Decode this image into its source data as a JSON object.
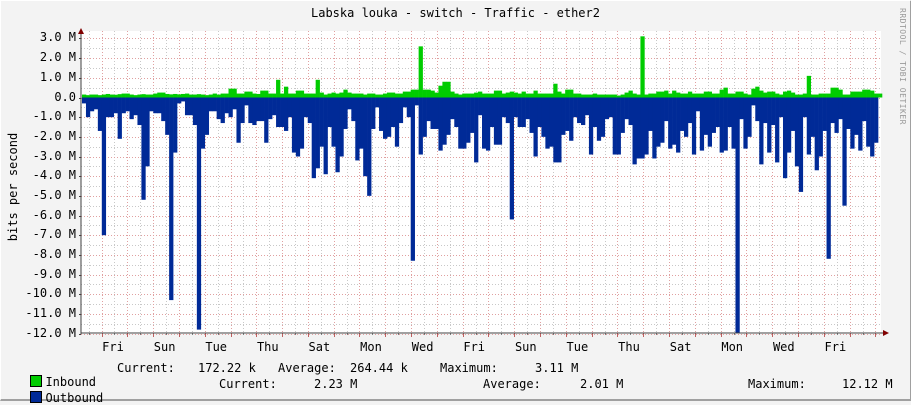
{
  "title": "Labska louka - switch - Traffic - ether2",
  "brand": "RRDTOOL / TOBI OETIKER",
  "y_axis_label": "bits per second",
  "colors": {
    "inbound": "#00cc00",
    "outbound": "#002a97",
    "grid_major": "#e0a0a0",
    "grid_minor": "#c8c8c8",
    "axis": "#404040",
    "arrow": "#800000",
    "background": "#f3f3f3",
    "canvas": "#ffffff"
  },
  "y_ticks": [
    "3.0 M",
    "2.0 M",
    "1.0 M",
    "0.0",
    "-1.0 M",
    "-2.0 M",
    "-3.0 M",
    "-4.0 M",
    "-5.0 M",
    "-6.0 M",
    "-7.0 M",
    "-8.0 M",
    "-9.0 M",
    "-10.0 M",
    "-11.0 M",
    "-12.0 M"
  ],
  "x_ticks": [
    "Fri",
    "Sun",
    "Tue",
    "Thu",
    "Sat",
    "Mon",
    "Wed",
    "Fri",
    "Sun",
    "Tue",
    "Thu",
    "Sat",
    "Mon",
    "Wed",
    "Fri"
  ],
  "legend": {
    "inbound": {
      "label": "Inbound",
      "current_label": "Current:",
      "current": "172.22 k",
      "average_label": "Average:",
      "average": "264.44 k",
      "maximum_label": "Maximum:",
      "maximum": "3.11 M"
    },
    "outbound": {
      "label": "Outbound",
      "current_label": "Current:",
      "current": "2.23 M",
      "average_label": "Average:",
      "average": "2.01 M",
      "maximum_label": "Maximum:",
      "maximum": "12.12 M"
    }
  },
  "chart_data": {
    "type": "area",
    "title": "Labska louka - switch - Traffic - ether2",
    "xlabel": "",
    "ylabel": "bits per second",
    "ylim": [
      -12.0,
      3.0
    ],
    "y_unit": "M (bits/s)",
    "grid": true,
    "legend_position": "bottom",
    "categories": [
      "Fri",
      "Sun",
      "Tue",
      "Thu",
      "Sat",
      "Mon",
      "Wed",
      "Fri",
      "Sun",
      "Tue",
      "Thu",
      "Sat",
      "Mon",
      "Wed",
      "Fri"
    ],
    "series": [
      {
        "name": "Inbound",
        "color": "#00cc00",
        "direction": "positive",
        "values": [
          0.15,
          0.12,
          0.15,
          0.15,
          0.12,
          0.15,
          0.18,
          0.15,
          0.14,
          0.17,
          0.2,
          0.2,
          0.15,
          0.12,
          0.15,
          0.17,
          0.15,
          0.15,
          0.2,
          0.25,
          0.25,
          0.18,
          0.16,
          0.18,
          0.16,
          0.18,
          0.2,
          0.15,
          0.15,
          0.17,
          0.15,
          0.12,
          0.15,
          0.2,
          0.15,
          0.2,
          0.2,
          0.45,
          0.45,
          0.2,
          0.2,
          0.3,
          0.3,
          0.2,
          0.18,
          0.35,
          0.35,
          0.2,
          0.2,
          0.9,
          0.2,
          0.55,
          0.2,
          0.2,
          0.35,
          0.35,
          0.2,
          0.2,
          0.2,
          0.9,
          0.25,
          0.15,
          0.2,
          0.25,
          0.2,
          0.25,
          0.4,
          0.25,
          0.2,
          0.2,
          0.2,
          0.15,
          0.2,
          0.2,
          0.15,
          0.15,
          0.2,
          0.25,
          0.25,
          0.2,
          0.2,
          0.3,
          0.3,
          0.4,
          0.4,
          2.6,
          0.4,
          0.4,
          0.35,
          0.25,
          0.6,
          0.8,
          0.8,
          0.3,
          0.2,
          0.15,
          0.2,
          0.2,
          0.2,
          0.25,
          0.3,
          0.2,
          0.2,
          0.2,
          0.35,
          0.35,
          0.2,
          0.25,
          0.3,
          0.25,
          0.2,
          0.3,
          0.2,
          0.2,
          0.35,
          0.2,
          0.2,
          0.2,
          0.2,
          0.7,
          0.3,
          0.2,
          0.4,
          0.4,
          0.2,
          0.2,
          0.15,
          0.15,
          0.15,
          0.2,
          0.15,
          0.15,
          0.15,
          0.15,
          0.15,
          0.1,
          0.15,
          0.25,
          0.35,
          0.2,
          0.15,
          3.11,
          0.15,
          0.2,
          0.2,
          0.3,
          0.3,
          0.35,
          0.2,
          0.35,
          0.25,
          0.2,
          0.2,
          0.3,
          0.2,
          0.2,
          0.2,
          0.3,
          0.3,
          0.2,
          0.2,
          0.4,
          0.5,
          0.2,
          0.2,
          0.3,
          0.3,
          0.2,
          0.15,
          0.45,
          0.55,
          0.35,
          0.25,
          0.3,
          0.3,
          0.2,
          0.15,
          0.3,
          0.35,
          0.25,
          0.15,
          0.15,
          0.2,
          1.1,
          0.15,
          0.15,
          0.2,
          0.2,
          0.2,
          0.5,
          0.5,
          0.4,
          0.15,
          0.15,
          0.3,
          0.3,
          0.3,
          0.4,
          0.4,
          0.35,
          0.2,
          0.2
        ]
      },
      {
        "name": "Outbound",
        "color": "#002a97",
        "direction": "negative",
        "values": [
          -0.3,
          -1.0,
          -0.7,
          -0.6,
          -1.7,
          -7.0,
          -1.0,
          -1.0,
          -0.8,
          -2.1,
          -0.8,
          -0.7,
          -1.1,
          -0.9,
          -1.4,
          -5.2,
          -3.5,
          -0.7,
          -0.8,
          -0.8,
          -1.2,
          -1.9,
          -10.3,
          -2.8,
          -0.3,
          -0.2,
          -0.9,
          -0.9,
          -1.4,
          -11.8,
          -2.6,
          -1.9,
          -0.7,
          -0.7,
          -1.1,
          -1.3,
          -0.8,
          -1.0,
          -0.6,
          -2.3,
          -1.3,
          -0.4,
          -1.3,
          -1.4,
          -1.2,
          -1.2,
          -2.3,
          -1.1,
          -0.9,
          -1.5,
          -1.5,
          -1.7,
          -1.0,
          -2.8,
          -3.0,
          -2.6,
          -1.0,
          -1.3,
          -4.1,
          -3.6,
          -2.5,
          -3.9,
          -1.5,
          -2.5,
          -3.8,
          -3.0,
          -1.6,
          -0.6,
          -1.2,
          -3.2,
          -2.6,
          -4.0,
          -5.0,
          -1.6,
          -0.5,
          -1.7,
          -2.1,
          -2.0,
          -1.5,
          -2.5,
          -1.3,
          -0.5,
          -1.0,
          -8.3,
          -0.4,
          -2.9,
          -2.0,
          -1.2,
          -1.6,
          -1.6,
          -2.7,
          -2.4,
          -1.9,
          -1.1,
          -1.5,
          -2.6,
          -2.6,
          -2.3,
          -1.8,
          -3.3,
          -0.9,
          -2.6,
          -2.7,
          -1.5,
          -2.4,
          -2.4,
          -1.0,
          -1.3,
          -6.2,
          -1.0,
          -1.5,
          -1.5,
          -1.1,
          -1.8,
          -3.0,
          -1.5,
          -2.0,
          -2.6,
          -2.5,
          -3.3,
          -3.3,
          -1.9,
          -1.7,
          -2.2,
          -1.0,
          -1.3,
          -1.4,
          -0.9,
          -2.9,
          -1.5,
          -2.2,
          -2.0,
          -1.1,
          -1.0,
          -2.9,
          -2.9,
          -1.8,
          -1.1,
          -1.4,
          -3.4,
          -3.1,
          -3.1,
          -2.9,
          -1.7,
          -3.1,
          -2.5,
          -2.3,
          -1.2,
          -2.6,
          -2.4,
          -2.8,
          -1.7,
          -2.0,
          -1.3,
          -2.9,
          -0.7,
          -2.7,
          -1.9,
          -2.5,
          -1.8,
          -1.5,
          -2.8,
          -2.7,
          -1.5,
          -2.6,
          -12.12,
          -1.1,
          -2.6,
          -2.0,
          -0.4,
          -1.2,
          -3.4,
          -1.3,
          -2.8,
          -1.4,
          -3.3,
          -1.0,
          -4.1,
          -2.8,
          -1.7,
          -3.5,
          -4.8,
          -1.0,
          -2.9,
          -2.0,
          -3.7,
          -3.0,
          -1.7,
          -8.2,
          -1.3,
          -1.8,
          -1.1,
          -5.5,
          -1.6,
          -2.6,
          -1.9,
          -2.7,
          -1.2,
          -2.5,
          -3.0,
          -2.3
        ]
      }
    ]
  }
}
